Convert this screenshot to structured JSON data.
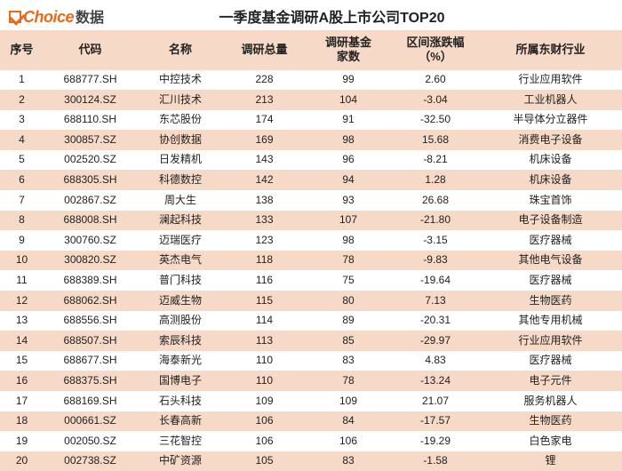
{
  "logo": {
    "choice_text": "Choice",
    "cn_text": "数据"
  },
  "title": "一季度基金调研A股上市公司TOP20",
  "table": {
    "type": "table",
    "header_bg": "#f6d9c6",
    "row_even_bg": "#f6d9c6",
    "row_odd_bg": "#ffffff",
    "text_color": "#222222",
    "header_fontsize": 13,
    "body_fontsize": 12,
    "columns": [
      {
        "label": "序号",
        "align": "center",
        "width_pct": 7
      },
      {
        "label": "代码",
        "align": "center",
        "width_pct": 15
      },
      {
        "label": "名称",
        "align": "center",
        "width_pct": 14
      },
      {
        "label": "调研总量",
        "align": "center",
        "width_pct": 13
      },
      {
        "label": "调研基金\n家数",
        "align": "center",
        "width_pct": 14
      },
      {
        "label": "区间涨跌幅\n（%）",
        "align": "center",
        "width_pct": 14
      },
      {
        "label": "所属东财行业",
        "align": "center",
        "width_pct": 23
      }
    ],
    "rows": [
      {
        "seq": "1",
        "code": "688777.SH",
        "name": "中控技术",
        "total": "228",
        "funds": "99",
        "pct": "2.60",
        "industry": "行业应用软件"
      },
      {
        "seq": "2",
        "code": "300124.SZ",
        "name": "汇川技术",
        "total": "213",
        "funds": "104",
        "pct": "-3.04",
        "industry": "工业机器人"
      },
      {
        "seq": "3",
        "code": "688110.SH",
        "name": "东芯股份",
        "total": "174",
        "funds": "91",
        "pct": "-32.50",
        "industry": "半导体分立器件"
      },
      {
        "seq": "4",
        "code": "300857.SZ",
        "name": "协创数据",
        "total": "169",
        "funds": "98",
        "pct": "15.68",
        "industry": "消费电子设备"
      },
      {
        "seq": "5",
        "code": "002520.SZ",
        "name": "日发精机",
        "total": "143",
        "funds": "96",
        "pct": "-8.21",
        "industry": "机床设备"
      },
      {
        "seq": "6",
        "code": "688305.SH",
        "name": "科德数控",
        "total": "142",
        "funds": "94",
        "pct": "1.28",
        "industry": "机床设备"
      },
      {
        "seq": "7",
        "code": "002867.SZ",
        "name": "周大生",
        "total": "138",
        "funds": "93",
        "pct": "26.68",
        "industry": "珠宝首饰"
      },
      {
        "seq": "8",
        "code": "688008.SH",
        "name": "澜起科技",
        "total": "133",
        "funds": "107",
        "pct": "-21.80",
        "industry": "电子设备制造"
      },
      {
        "seq": "9",
        "code": "300760.SZ",
        "name": "迈瑞医疗",
        "total": "123",
        "funds": "98",
        "pct": "-3.15",
        "industry": "医疗器械"
      },
      {
        "seq": "10",
        "code": "300820.SZ",
        "name": "英杰电气",
        "total": "118",
        "funds": "78",
        "pct": "-9.83",
        "industry": "其他电气设备"
      },
      {
        "seq": "11",
        "code": "688389.SH",
        "name": "普门科技",
        "total": "116",
        "funds": "75",
        "pct": "-19.64",
        "industry": "医疗器械"
      },
      {
        "seq": "12",
        "code": "688062.SH",
        "name": "迈威生物",
        "total": "115",
        "funds": "80",
        "pct": "7.13",
        "industry": "生物医药"
      },
      {
        "seq": "13",
        "code": "688556.SH",
        "name": "高测股份",
        "total": "114",
        "funds": "89",
        "pct": "-20.31",
        "industry": "其他专用机械"
      },
      {
        "seq": "14",
        "code": "688507.SH",
        "name": "索辰科技",
        "total": "113",
        "funds": "85",
        "pct": "-29.97",
        "industry": "行业应用软件"
      },
      {
        "seq": "15",
        "code": "688677.SH",
        "name": "海泰新光",
        "total": "110",
        "funds": "83",
        "pct": "4.83",
        "industry": "医疗器械"
      },
      {
        "seq": "16",
        "code": "688375.SH",
        "name": "国博电子",
        "total": "110",
        "funds": "78",
        "pct": "-13.24",
        "industry": "电子元件"
      },
      {
        "seq": "17",
        "code": "688169.SH",
        "name": "石头科技",
        "total": "109",
        "funds": "109",
        "pct": "21.07",
        "industry": "服务机器人"
      },
      {
        "seq": "18",
        "code": "000661.SZ",
        "name": "长春高新",
        "total": "106",
        "funds": "84",
        "pct": "-17.57",
        "industry": "生物医药"
      },
      {
        "seq": "19",
        "code": "002050.SZ",
        "name": "三花智控",
        "total": "106",
        "funds": "106",
        "pct": "-19.29",
        "industry": "白色家电"
      },
      {
        "seq": "20",
        "code": "002738.SZ",
        "name": "中矿资源",
        "total": "105",
        "funds": "83",
        "pct": "-1.58",
        "industry": "锂"
      }
    ]
  }
}
